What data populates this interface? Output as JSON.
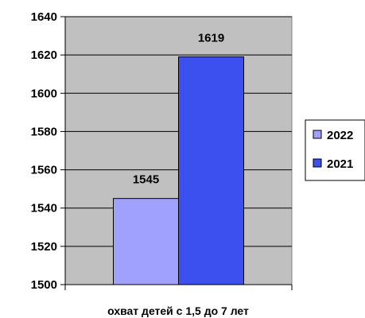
{
  "chart_data": {
    "type": "bar",
    "categories": [
      "охват детей с 1,5 до 7 лет"
    ],
    "series": [
      {
        "name": "2022",
        "values": [
          1545
        ],
        "color": "#a0a0ff"
      },
      {
        "name": "2021",
        "values": [
          1619
        ],
        "color": "#3c50f0"
      }
    ],
    "xlabel": "охват детей с 1,5 до 7 лет",
    "ylabel": "",
    "ylim": [
      1500,
      1640
    ],
    "yticks": [
      1500,
      1520,
      1540,
      1560,
      1580,
      1600,
      1620,
      1640
    ],
    "data_labels": [
      "1545",
      "1619"
    ],
    "grid": true,
    "plot_background": "#c0c0c0",
    "legend": "right"
  }
}
